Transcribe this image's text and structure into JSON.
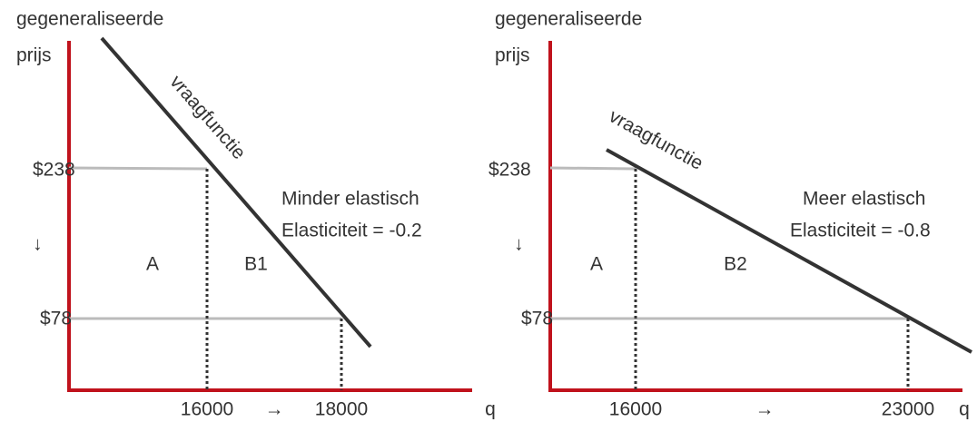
{
  "panels": [
    {
      "y_label_1": "gegeneraliseerde",
      "y_label_2": "prijs",
      "price_high": "$238",
      "price_low": "$78",
      "down_arrow": "↓",
      "area_a": "A",
      "area_b": "B1",
      "note_1": "Minder elastisch",
      "note_2": "Elasticiteit = -0.2",
      "curve_label": "vraagfunctie",
      "q_low": "16000",
      "right_arrow": "→",
      "q_high": "18000",
      "x_label": "q"
    },
    {
      "y_label_1": "gegeneraliseerde",
      "y_label_2": "prijs",
      "price_high": "$238",
      "price_low": "$78",
      "down_arrow": "↓",
      "area_a": "A",
      "area_b": "B2",
      "note_1": "Meer elastisch",
      "note_2": "Elasticiteit = -0.8",
      "curve_label": "vraagfunctie",
      "q_low": "16000",
      "right_arrow": "→",
      "q_high": "23000",
      "x_label": "q"
    }
  ]
}
